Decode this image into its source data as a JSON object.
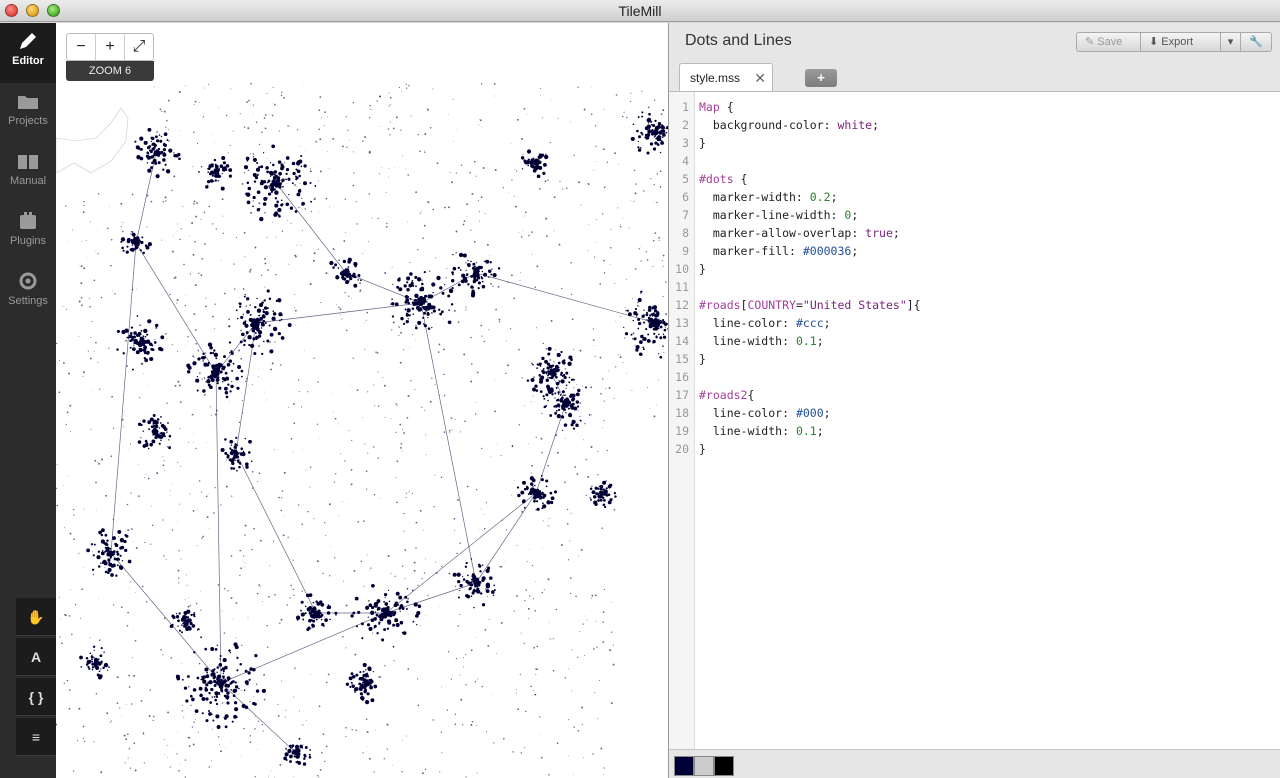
{
  "window": {
    "title": "TileMill"
  },
  "sidebar": {
    "items": [
      {
        "label": "Editor",
        "icon": "pencil-icon"
      },
      {
        "label": "Projects",
        "icon": "folder-icon"
      },
      {
        "label": "Manual",
        "icon": "book-icon"
      },
      {
        "label": "Plugins",
        "icon": "plugin-icon"
      },
      {
        "label": "Settings",
        "icon": "gear-icon"
      }
    ],
    "tools": [
      {
        "name": "pan-tool",
        "icon": "hand-icon",
        "glyph": "✋"
      },
      {
        "name": "font-tool",
        "icon": "font-icon",
        "glyph": "A"
      },
      {
        "name": "carto-tool",
        "icon": "braces-icon",
        "glyph": "{ }"
      },
      {
        "name": "layers-tool",
        "icon": "layers-icon",
        "glyph": "≡"
      }
    ]
  },
  "map": {
    "zoom_out": "−",
    "zoom_in": "+",
    "fullscreen": "⤢",
    "zoom_label": "ZOOM 6"
  },
  "editor": {
    "project_title": "Dots and Lines",
    "save_label": "Save",
    "export_label": "Export",
    "tab_name": "style.mss",
    "tab_close": "✕",
    "add_tab": "+",
    "code_lines": [
      [
        [
          "kw",
          "Map"
        ],
        [
          "t",
          " {"
        ]
      ],
      [
        [
          "t",
          "  background-color: "
        ],
        [
          "str",
          "white"
        ],
        [
          "t",
          ";"
        ]
      ],
      [
        [
          "t",
          "}"
        ]
      ],
      [
        [
          "t",
          ""
        ]
      ],
      [
        [
          "sel",
          "#dots"
        ],
        [
          "t",
          " {"
        ]
      ],
      [
        [
          "t",
          "  marker-width: "
        ],
        [
          "val",
          "0.2"
        ],
        [
          "t",
          ";"
        ]
      ],
      [
        [
          "t",
          "  marker-line-width: "
        ],
        [
          "val",
          "0"
        ],
        [
          "t",
          ";"
        ]
      ],
      [
        [
          "t",
          "  marker-allow-overlap: "
        ],
        [
          "bool",
          "true"
        ],
        [
          "t",
          ";"
        ]
      ],
      [
        [
          "t",
          "  marker-fill: "
        ],
        [
          "hex",
          "#000036"
        ],
        [
          "t",
          ";"
        ]
      ],
      [
        [
          "t",
          "}"
        ]
      ],
      [
        [
          "t",
          ""
        ]
      ],
      [
        [
          "sel",
          "#roads"
        ],
        [
          "t",
          "["
        ],
        [
          "sel",
          "COUNTRY"
        ],
        [
          "t",
          "="
        ],
        [
          "str",
          "\"United States\""
        ],
        [
          "t",
          "]{"
        ]
      ],
      [
        [
          "t",
          "  line-color: "
        ],
        [
          "hex",
          "#ccc"
        ],
        [
          "t",
          ";"
        ]
      ],
      [
        [
          "t",
          "  line-width: "
        ],
        [
          "val",
          "0.1"
        ],
        [
          "t",
          ";"
        ]
      ],
      [
        [
          "t",
          "}"
        ]
      ],
      [
        [
          "t",
          ""
        ]
      ],
      [
        [
          "sel",
          "#roads2"
        ],
        [
          "t",
          "{"
        ]
      ],
      [
        [
          "t",
          "  line-color: "
        ],
        [
          "hex",
          "#000"
        ],
        [
          "t",
          ";"
        ]
      ],
      [
        [
          "t",
          "  line-width: "
        ],
        [
          "val",
          "0.1"
        ],
        [
          "t",
          ";"
        ]
      ],
      [
        [
          "t",
          "}"
        ]
      ]
    ],
    "palette": [
      "#000036",
      "#cccccc",
      "#000000"
    ]
  },
  "colors": {
    "dot_fill": "#000036",
    "sidebar_bg": "#2c2c2c"
  }
}
